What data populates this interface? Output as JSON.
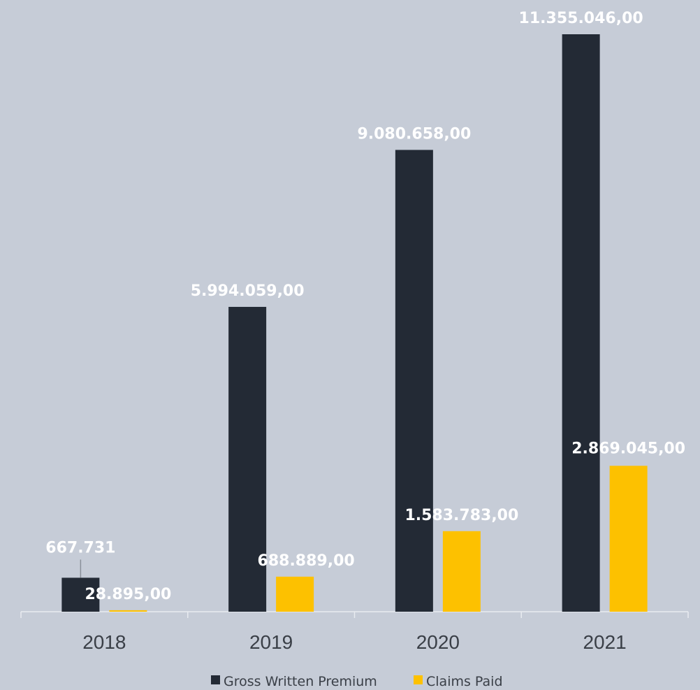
{
  "chart_data": {
    "type": "bar",
    "title": "",
    "xlabel": "",
    "ylabel": "",
    "categories": [
      "2018",
      "2019",
      "2020",
      "2021"
    ],
    "series": [
      {
        "name": "Gross Written Premium",
        "color": "#232a35",
        "values": [
          667731,
          5994059,
          9080658,
          11355046
        ],
        "labels": [
          "667.731",
          "5.994.059,00",
          "9.080.658,00",
          "11.355.046,00"
        ]
      },
      {
        "name": "Claims Paid",
        "color": "#fdc100",
        "values": [
          28895,
          688889,
          1583783,
          2869045
        ],
        "labels": [
          "28.895,00",
          "688.889,00",
          "1.583.783,00",
          "2.869.045,00"
        ]
      }
    ],
    "ylim": [
      0,
      11355046
    ],
    "grid": false,
    "legend_position": "bottom"
  },
  "colors": {
    "background": "#c6ccd7",
    "axis": "#e8ebf0",
    "label": "#ffffff",
    "tick": "#3a3f47"
  }
}
